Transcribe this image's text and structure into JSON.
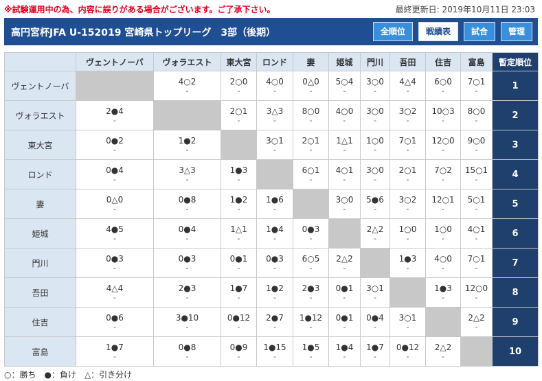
{
  "notice": "※試験運用中の為、内容に誤りがある場合がございます。ご了承下さい。",
  "last_updated": "最終更新日: 2019年10月11日 23:03",
  "header_title": "高円宮杯JFA U-152019 宮崎県トップリーグ　3部（後期）",
  "nav": [
    {
      "label": "全順位",
      "active": false
    },
    {
      "label": "戦績表",
      "active": true
    },
    {
      "label": "試合",
      "active": false
    },
    {
      "label": "管理",
      "active": false
    }
  ],
  "rank_header": "暫定順位",
  "teams": [
    "ヴェントノーバ",
    "ヴォラエスト",
    "東大宮",
    "ロンド",
    "妻",
    "姫城",
    "門川",
    "吾田",
    "住吉",
    "富島"
  ],
  "ranks": [
    "1",
    "2",
    "3",
    "4",
    "5",
    "6",
    "7",
    "8",
    "9",
    "10"
  ],
  "results": [
    [
      null,
      "4○2",
      "2○0",
      "4○0",
      "0△0",
      "5○4",
      "3○0",
      "4△4",
      "6○0",
      "7○1"
    ],
    [
      "2●4",
      null,
      "2○1",
      "3△3",
      "8○0",
      "4○0",
      "3○0",
      "3○2",
      "10○3",
      "8○0"
    ],
    [
      "0●2",
      "1●2",
      null,
      "3○1",
      "2○1",
      "1△1",
      "1○0",
      "7○1",
      "12○0",
      "9○0"
    ],
    [
      "0●4",
      "3△3",
      "1●3",
      null,
      "6○1",
      "4○1",
      "3○0",
      "2○1",
      "7○2",
      "15○1"
    ],
    [
      "0△0",
      "0●8",
      "1●2",
      "1●6",
      null,
      "3○0",
      "5●6",
      "3○2",
      "12○1",
      "5○1"
    ],
    [
      "4●5",
      "0●4",
      "1△1",
      "1●4",
      "0●3",
      null,
      "2△2",
      "1○0",
      "1○0",
      "4○1"
    ],
    [
      "0●3",
      "0●3",
      "0●1",
      "0●3",
      "6○5",
      "2△2",
      null,
      "1●3",
      "4○0",
      "7○1"
    ],
    [
      "4△4",
      "2●3",
      "1●7",
      "1●2",
      "2●3",
      "0●1",
      "3○1",
      null,
      "1●3",
      "12○0"
    ],
    [
      "0●6",
      "3●10",
      "0●12",
      "2●7",
      "1●12",
      "0●1",
      "0●4",
      "3○1",
      null,
      "2△2"
    ],
    [
      "1●7",
      "0●8",
      "0●9",
      "1●15",
      "1●5",
      "1●4",
      "1●7",
      "0●12",
      "2△2",
      null
    ]
  ],
  "sub_mark": "-",
  "legend": "○：勝ち　●：負け　△：引き分け"
}
